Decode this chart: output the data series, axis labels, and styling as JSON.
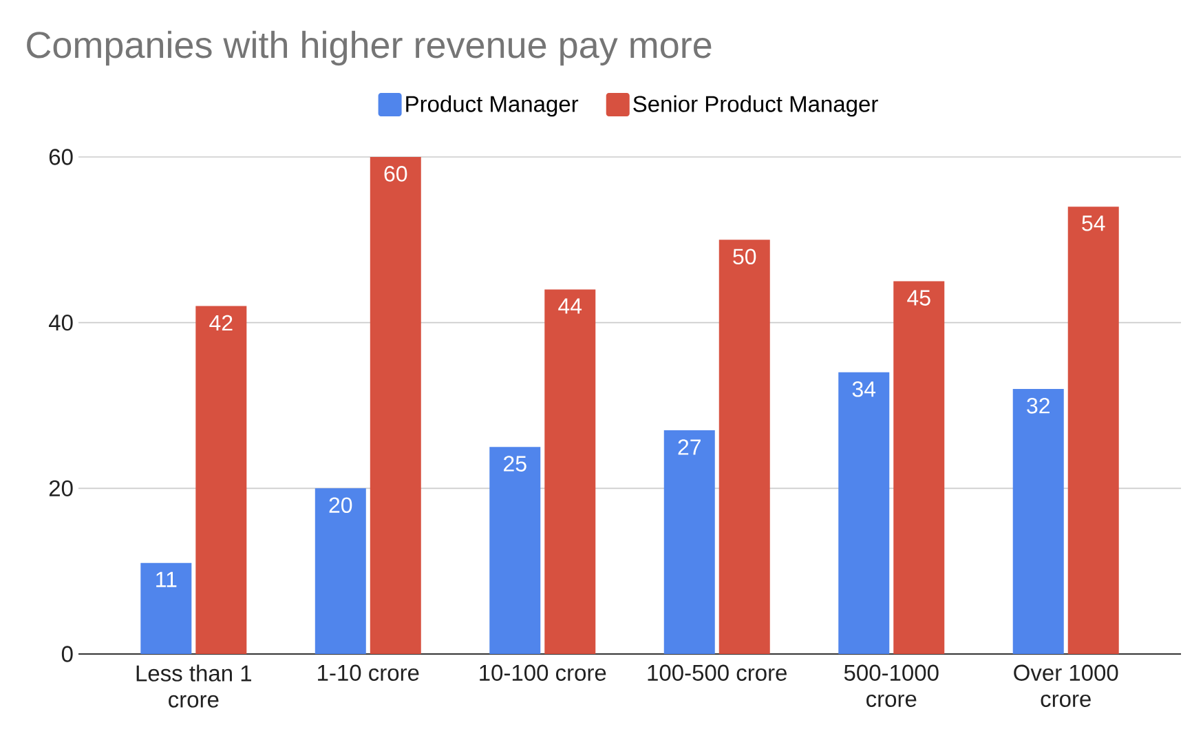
{
  "chart_data": {
    "type": "bar",
    "title": "Companies with higher revenue pay more",
    "categories": [
      "Less than 1 crore",
      "1-10 crore",
      "10-100 crore",
      "100-500 crore",
      "500-1000 crore",
      "Over 1000 crore"
    ],
    "series": [
      {
        "name": "Product Manager",
        "color": "#5085ec",
        "values": [
          11,
          20,
          25,
          27,
          34,
          32
        ]
      },
      {
        "name": "Senior Product Manager",
        "color": "#d75140",
        "values": [
          42,
          60,
          44,
          50,
          45,
          54
        ]
      }
    ],
    "ylim": [
      0,
      60
    ],
    "yticks": [
      0,
      20,
      40,
      60
    ],
    "grid": "y",
    "legend": "top",
    "data_labels": true
  }
}
